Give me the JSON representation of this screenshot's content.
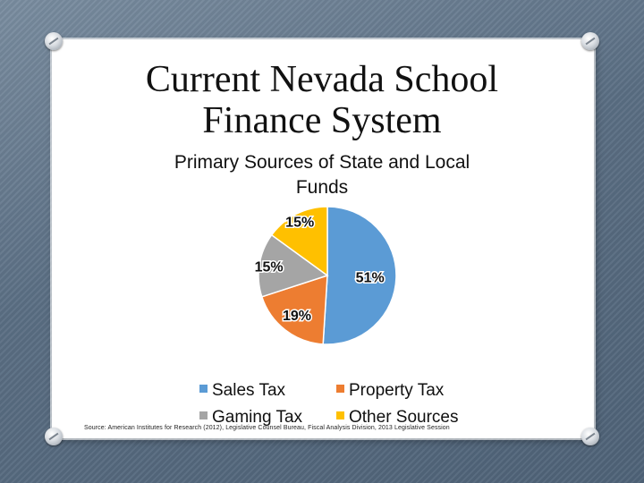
{
  "slide": {
    "title_line1": "Current Nevada School",
    "title_line2": "Finance System",
    "subtitle_line1": "Primary Sources of State and Local",
    "subtitle_line2": "Funds",
    "source_note": "Source: American Institutes for Research (2012), Legislative Counsel Bureau, Fiscal Analysis Division, 2013 Legislative Session"
  },
  "chart_data": {
    "type": "pie",
    "title": "",
    "legend_position": "bottom",
    "slices": [
      {
        "name": "Sales Tax",
        "value": 51,
        "label": "51%",
        "color": "#5b9bd5"
      },
      {
        "name": "Property Tax",
        "value": 19,
        "label": "19%",
        "color": "#ed7d31"
      },
      {
        "name": "Gaming Tax",
        "value": 15,
        "label": "15%",
        "color": "#a5a5a5"
      },
      {
        "name": "Other Sources",
        "value": 15,
        "label": "15%",
        "color": "#ffc000"
      }
    ]
  }
}
